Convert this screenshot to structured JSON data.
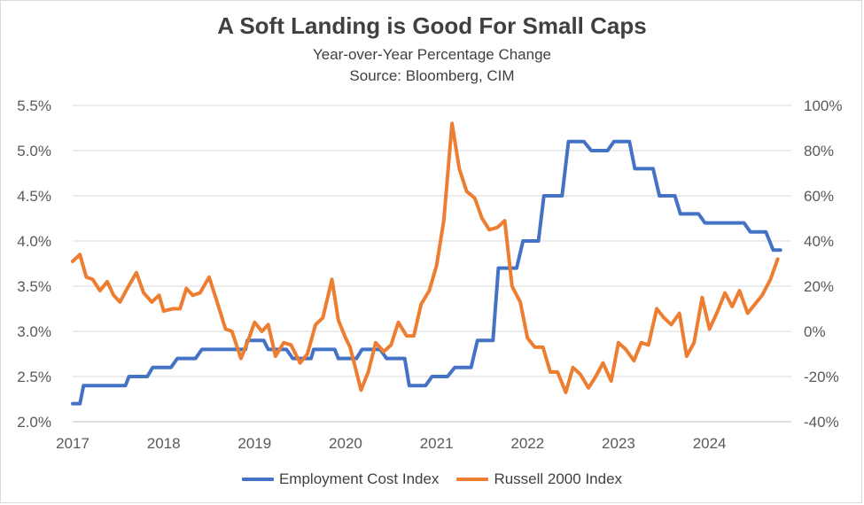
{
  "chart_data": {
    "type": "line",
    "title": "A Soft Landing is Good For Small Caps",
    "subtitle_lines": [
      "Year-over-Year Percentage Change",
      "Source: Bloomberg, CIM"
    ],
    "x_ticks": [
      "2017",
      "2018",
      "2019",
      "2020",
      "2021",
      "2022",
      "2023",
      "2024"
    ],
    "x_range": [
      2017.0,
      2024.9
    ],
    "y_left": {
      "min": 2.0,
      "max": 5.5,
      "ticks": [
        2.0,
        2.5,
        3.0,
        3.5,
        4.0,
        4.5,
        5.0,
        5.5
      ],
      "tick_labels": [
        "2.0%",
        "2.5%",
        "3.0%",
        "3.5%",
        "4.0%",
        "4.5%",
        "5.0%",
        "5.5%"
      ]
    },
    "y_right": {
      "min": -40,
      "max": 100,
      "ticks": [
        -40,
        -20,
        0,
        20,
        40,
        60,
        80,
        100
      ],
      "tick_labels": [
        "-40%",
        "-20%",
        "0%",
        "20%",
        "40%",
        "60%",
        "80%",
        "100%"
      ]
    },
    "grid": "horizontal",
    "legend_position": "bottom",
    "series": [
      {
        "name": "Employment Cost Index",
        "axis": "left",
        "color": "#4472C4",
        "points": [
          [
            2017.0,
            2.2
          ],
          [
            2017.08,
            2.2
          ],
          [
            2017.12,
            2.4
          ],
          [
            2017.5,
            2.4
          ],
          [
            2017.55,
            2.4
          ],
          [
            2017.58,
            2.4
          ],
          [
            2017.62,
            2.5
          ],
          [
            2017.82,
            2.5
          ],
          [
            2017.88,
            2.6
          ],
          [
            2018.08,
            2.6
          ],
          [
            2018.15,
            2.7
          ],
          [
            2018.35,
            2.7
          ],
          [
            2018.42,
            2.8
          ],
          [
            2018.9,
            2.8
          ],
          [
            2018.92,
            2.9
          ],
          [
            2019.1,
            2.9
          ],
          [
            2019.15,
            2.8
          ],
          [
            2019.35,
            2.8
          ],
          [
            2019.42,
            2.7
          ],
          [
            2019.62,
            2.7
          ],
          [
            2019.65,
            2.8
          ],
          [
            2019.88,
            2.8
          ],
          [
            2019.92,
            2.7
          ],
          [
            2020.12,
            2.7
          ],
          [
            2020.18,
            2.8
          ],
          [
            2020.38,
            2.8
          ],
          [
            2020.45,
            2.7
          ],
          [
            2020.65,
            2.7
          ],
          [
            2020.7,
            2.4
          ],
          [
            2020.88,
            2.4
          ],
          [
            2020.95,
            2.5
          ],
          [
            2021.12,
            2.5
          ],
          [
            2021.2,
            2.6
          ],
          [
            2021.38,
            2.6
          ],
          [
            2021.45,
            2.9
          ],
          [
            2021.62,
            2.9
          ],
          [
            2021.68,
            3.7
          ],
          [
            2021.88,
            3.7
          ],
          [
            2021.95,
            4.0
          ],
          [
            2022.12,
            4.0
          ],
          [
            2022.18,
            4.5
          ],
          [
            2022.38,
            4.5
          ],
          [
            2022.45,
            5.1
          ],
          [
            2022.62,
            5.1
          ],
          [
            2022.7,
            5.0
          ],
          [
            2022.88,
            5.0
          ],
          [
            2022.95,
            5.1
          ],
          [
            2023.12,
            5.1
          ],
          [
            2023.18,
            4.8
          ],
          [
            2023.38,
            4.8
          ],
          [
            2023.45,
            4.5
          ],
          [
            2023.62,
            4.5
          ],
          [
            2023.68,
            4.3
          ],
          [
            2023.88,
            4.3
          ],
          [
            2023.95,
            4.2
          ],
          [
            2024.38,
            4.2
          ],
          [
            2024.45,
            4.1
          ],
          [
            2024.62,
            4.1
          ],
          [
            2024.7,
            3.9
          ],
          [
            2024.78,
            3.9
          ]
        ]
      },
      {
        "name": "Russell 2000 Index",
        "axis": "right",
        "color": "#ED7D31",
        "points": [
          [
            2017.0,
            31
          ],
          [
            2017.08,
            34
          ],
          [
            2017.15,
            24
          ],
          [
            2017.22,
            23
          ],
          [
            2017.3,
            18
          ],
          [
            2017.38,
            22
          ],
          [
            2017.45,
            16
          ],
          [
            2017.52,
            13
          ],
          [
            2017.6,
            19
          ],
          [
            2017.7,
            26
          ],
          [
            2017.78,
            17
          ],
          [
            2017.87,
            13
          ],
          [
            2017.95,
            16
          ],
          [
            2018.0,
            9
          ],
          [
            2018.1,
            10
          ],
          [
            2018.18,
            10
          ],
          [
            2018.25,
            19
          ],
          [
            2018.32,
            16
          ],
          [
            2018.4,
            17
          ],
          [
            2018.5,
            24
          ],
          [
            2018.58,
            14
          ],
          [
            2018.68,
            1
          ],
          [
            2018.75,
            0
          ],
          [
            2018.85,
            -12
          ],
          [
            2018.92,
            -5
          ],
          [
            2019.0,
            4
          ],
          [
            2019.08,
            0
          ],
          [
            2019.15,
            3
          ],
          [
            2019.23,
            -11
          ],
          [
            2019.32,
            -5
          ],
          [
            2019.4,
            -6
          ],
          [
            2019.5,
            -14
          ],
          [
            2019.58,
            -10
          ],
          [
            2019.67,
            3
          ],
          [
            2019.75,
            6
          ],
          [
            2019.85,
            23
          ],
          [
            2019.92,
            5
          ],
          [
            2020.0,
            -3
          ],
          [
            2020.05,
            -7
          ],
          [
            2020.17,
            -26
          ],
          [
            2020.25,
            -18
          ],
          [
            2020.33,
            -5
          ],
          [
            2020.42,
            -9
          ],
          [
            2020.5,
            -6
          ],
          [
            2020.58,
            4
          ],
          [
            2020.67,
            -2
          ],
          [
            2020.75,
            -2
          ],
          [
            2020.83,
            12
          ],
          [
            2020.92,
            18
          ],
          [
            2021.0,
            29
          ],
          [
            2021.08,
            49
          ],
          [
            2021.17,
            92
          ],
          [
            2021.25,
            72
          ],
          [
            2021.33,
            62
          ],
          [
            2021.42,
            59
          ],
          [
            2021.5,
            50
          ],
          [
            2021.58,
            45
          ],
          [
            2021.67,
            46
          ],
          [
            2021.75,
            49
          ],
          [
            2021.83,
            20
          ],
          [
            2021.92,
            13
          ],
          [
            2022.0,
            -3
          ],
          [
            2022.08,
            -7
          ],
          [
            2022.17,
            -7
          ],
          [
            2022.25,
            -18
          ],
          [
            2022.33,
            -18
          ],
          [
            2022.42,
            -27
          ],
          [
            2022.5,
            -16
          ],
          [
            2022.58,
            -19
          ],
          [
            2022.67,
            -25
          ],
          [
            2022.75,
            -20
          ],
          [
            2022.83,
            -14
          ],
          [
            2022.92,
            -22
          ],
          [
            2023.0,
            -5
          ],
          [
            2023.08,
            -8
          ],
          [
            2023.17,
            -13
          ],
          [
            2023.25,
            -5
          ],
          [
            2023.33,
            -6
          ],
          [
            2023.42,
            10
          ],
          [
            2023.5,
            6
          ],
          [
            2023.58,
            3
          ],
          [
            2023.67,
            8
          ],
          [
            2023.75,
            -11
          ],
          [
            2023.83,
            -5
          ],
          [
            2023.92,
            15
          ],
          [
            2024.0,
            1
          ],
          [
            2024.08,
            8
          ],
          [
            2024.17,
            17
          ],
          [
            2024.25,
            11
          ],
          [
            2024.33,
            18
          ],
          [
            2024.42,
            8
          ],
          [
            2024.5,
            12
          ],
          [
            2024.58,
            16
          ],
          [
            2024.67,
            23
          ],
          [
            2024.75,
            32
          ]
        ]
      }
    ]
  }
}
